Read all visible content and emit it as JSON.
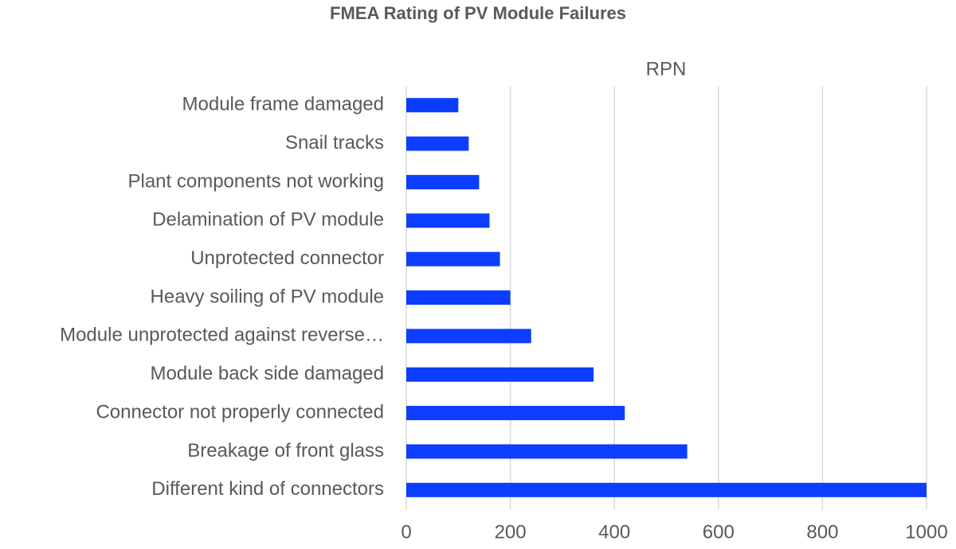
{
  "chart_data": {
    "type": "bar",
    "orientation": "horizontal",
    "title": "FMEA Rating of PV Module Failures",
    "categories": [
      "Module frame damaged",
      "Snail tracks",
      "Plant components not working",
      "Delamination of PV module",
      "Unprotected connector",
      "Heavy soiling of PV module",
      "Module unprotected against reverse…",
      "Module back side damaged",
      "Connector not properly connected",
      "Breakage of front glass",
      "Different kind of connectors"
    ],
    "series": [
      {
        "name": "RPN",
        "color": "#0d3dff",
        "values": [
          100,
          120,
          140,
          160,
          180,
          200,
          240,
          360,
          420,
          540,
          1000
        ]
      }
    ],
    "xlim": [
      0,
      1000
    ],
    "xticks": [
      0,
      200,
      400,
      600,
      800,
      1000
    ],
    "grid": true
  }
}
